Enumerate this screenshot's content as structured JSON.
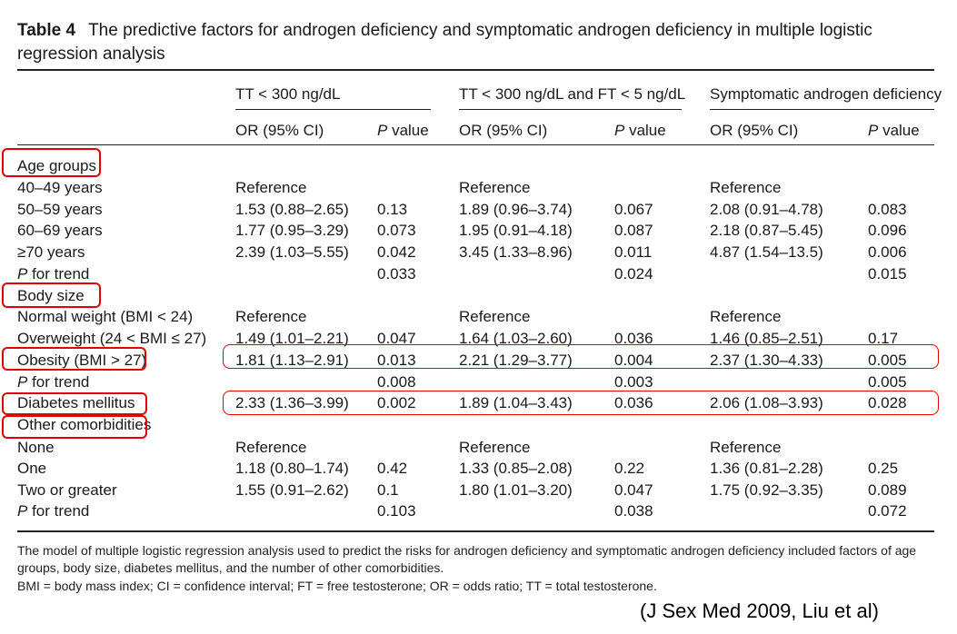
{
  "table": {
    "number_label": "Table 4",
    "title_line1": "The predictive factors for androgen deficiency and symptomatic androgen deficiency in multiple logistic",
    "title_line2": "regression analysis",
    "group_headers": [
      "TT < 300 ng/dL",
      "TT < 300 ng/dL and FT < 5 ng/dL",
      "Symptomatic androgen deficiency"
    ],
    "subheaders": {
      "or_ci": "OR (95% CI)",
      "p_italic": "P",
      "p_rest": " value"
    },
    "rows": [
      {
        "label": "Age groups",
        "cells": [
          "",
          "",
          "",
          "",
          "",
          ""
        ]
      },
      {
        "label": "40–49 years",
        "cells": [
          "Reference",
          "",
          "Reference",
          "",
          "Reference",
          ""
        ]
      },
      {
        "label": "50–59 years",
        "cells": [
          "1.53 (0.88–2.65)",
          "0.13",
          "1.89 (0.96–3.74)",
          "0.067",
          "2.08 (0.91–4.78)",
          "0.083"
        ]
      },
      {
        "label": "60–69 years",
        "cells": [
          "1.77 (0.95–3.29)",
          "0.073",
          "1.95 (0.91–4.18)",
          "0.087",
          "2.18 (0.87–5.45)",
          "0.096"
        ]
      },
      {
        "label": "≥70 years",
        "cells": [
          "2.39 (1.03–5.55)",
          "0.042",
          "3.45 (1.33–8.96)",
          "0.011",
          "4.87 (1.54–13.5)",
          "0.006"
        ]
      },
      {
        "label_italic": "P",
        "label": " for trend",
        "cells": [
          "",
          "0.033",
          "",
          "0.024",
          "",
          "0.015"
        ]
      },
      {
        "label": "Body size",
        "cells": [
          "",
          "",
          "",
          "",
          "",
          ""
        ]
      },
      {
        "label": "Normal weight (BMI < 24)",
        "cells": [
          "Reference",
          "",
          "Reference",
          "",
          "Reference",
          ""
        ]
      },
      {
        "label": "Overweight (24 < BMI ≤ 27)",
        "cells": [
          "1.49 (1.01–2.21)",
          "0.047",
          "1.64 (1.03–2.60)",
          "0.036",
          "1.46 (0.85–2.51)",
          "0.17"
        ]
      },
      {
        "label": "Obesity (BMI > 27)",
        "cells": [
          "1.81 (1.13–2.91)",
          "0.013",
          "2.21 (1.29–3.77)",
          "0.004",
          "2.37 (1.30–4.33)",
          "0.005"
        ]
      },
      {
        "label_italic": "P",
        "label": " for trend",
        "cells": [
          "",
          "0.008",
          "",
          "0.003",
          "",
          "0.005"
        ]
      },
      {
        "label": "Diabetes mellitus",
        "cells": [
          "2.33 (1.36–3.99)",
          "0.002",
          "1.89 (1.04–3.43)",
          "0.036",
          "2.06 (1.08–3.93)",
          "0.028"
        ]
      },
      {
        "label": "Other comorbidities",
        "cells": [
          "",
          "",
          "",
          "",
          "",
          ""
        ]
      },
      {
        "label": "None",
        "cells": [
          "Reference",
          "",
          "Reference",
          "",
          "Reference",
          ""
        ]
      },
      {
        "label": "One",
        "cells": [
          "1.18 (0.80–1.74)",
          "0.42",
          "1.33 (0.85–2.08)",
          "0.22",
          "1.36 (0.81–2.28)",
          "0.25"
        ]
      },
      {
        "label": "Two or greater",
        "cells": [
          "1.55 (0.91–2.62)",
          "0.1",
          "1.80 (1.01–3.20)",
          "0.047",
          "1.75 (0.92–3.35)",
          "0.089"
        ]
      },
      {
        "label_italic": "P",
        "label": " for trend",
        "cells": [
          "",
          "0.103",
          "",
          "0.038",
          "",
          "0.072"
        ]
      }
    ],
    "footnote_line1": "The model of multiple logistic regression analysis used to predict the risks for androgen deficiency and symptomatic androgen deficiency included factors of age",
    "footnote_line2": "groups, body size, diabetes mellitus, and the number of other comorbidities.",
    "footnote_line3": "BMI = body mass index; CI = confidence interval; FT = free testosterone; OR = odds ratio; TT = total testosterone."
  },
  "citation": "(J Sex Med 2009, Liu et al)",
  "highlight_color": "#e00000"
}
